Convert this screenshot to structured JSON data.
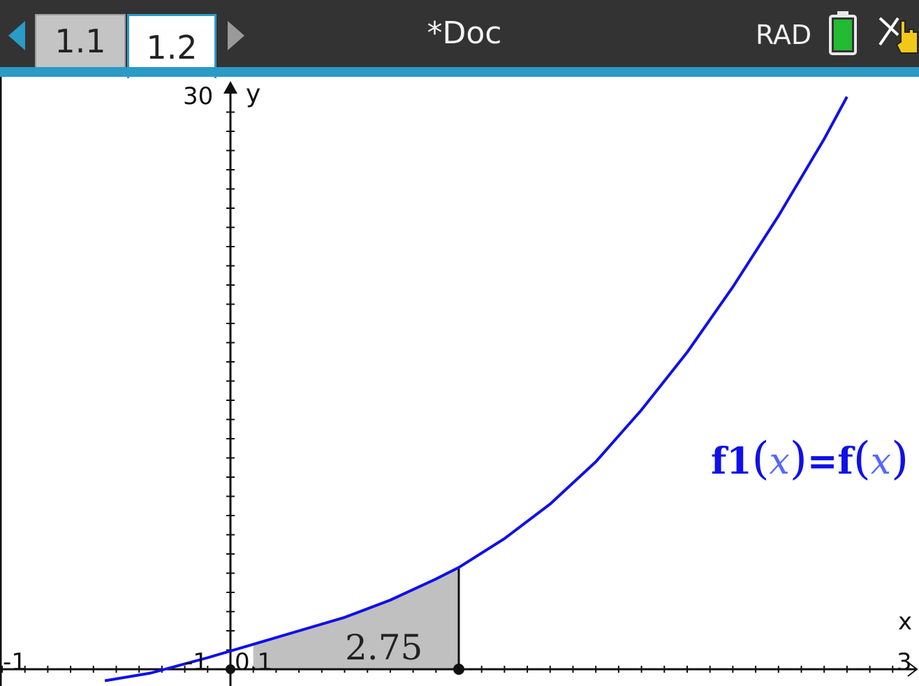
{
  "toolbar": {
    "tabs": [
      {
        "label": "1.1",
        "active": false
      },
      {
        "label": "1.2",
        "active": true
      }
    ],
    "doc_title": "*Doc",
    "angle_mode": "RAD",
    "icons": [
      "prev-page-arrow-icon",
      "next-page-arrow-icon",
      "battery-icon",
      "pointer-hand-icon"
    ],
    "colors": {
      "bar": "#333333",
      "accent": "#2a9ac6",
      "battery": "#22bb33"
    }
  },
  "graph": {
    "y_axis_label": "y",
    "x_axis_label": "x",
    "y_max_label": "30",
    "x_min_label": "-1",
    "x_max_label": "3",
    "y_min_label": "-1",
    "lower_bound_label": "0.1",
    "area_value": "2.75",
    "function_label": {
      "name": "f1",
      "var": "x",
      "rhs": "f"
    },
    "colors": {
      "curve": "#1010e8",
      "shade": "#c0c0c0"
    }
  },
  "chart_data": {
    "type": "area",
    "title": "",
    "xlabel": "x",
    "ylabel": "y",
    "xlim": [
      -1,
      3
    ],
    "ylim": [
      -1,
      30
    ],
    "grid": false,
    "series": [
      {
        "name": "f1(x)=f(x)",
        "x": [
          -0.55,
          -0.35,
          -0.1,
          0.1,
          0.3,
          0.5,
          0.7,
          0.9,
          1.0,
          1.2,
          1.4,
          1.6,
          1.8,
          2.0,
          2.2,
          2.4,
          2.6,
          2.7
        ],
        "y": [
          -0.6,
          -0.2,
          0.6,
          1.3,
          2.0,
          2.7,
          3.6,
          4.7,
          5.3,
          6.8,
          8.6,
          10.8,
          13.5,
          16.5,
          19.9,
          23.6,
          27.6,
          29.8
        ]
      }
    ],
    "shaded_region": {
      "x_from": 0.1,
      "x_to": 1.0,
      "value": 2.75
    }
  }
}
